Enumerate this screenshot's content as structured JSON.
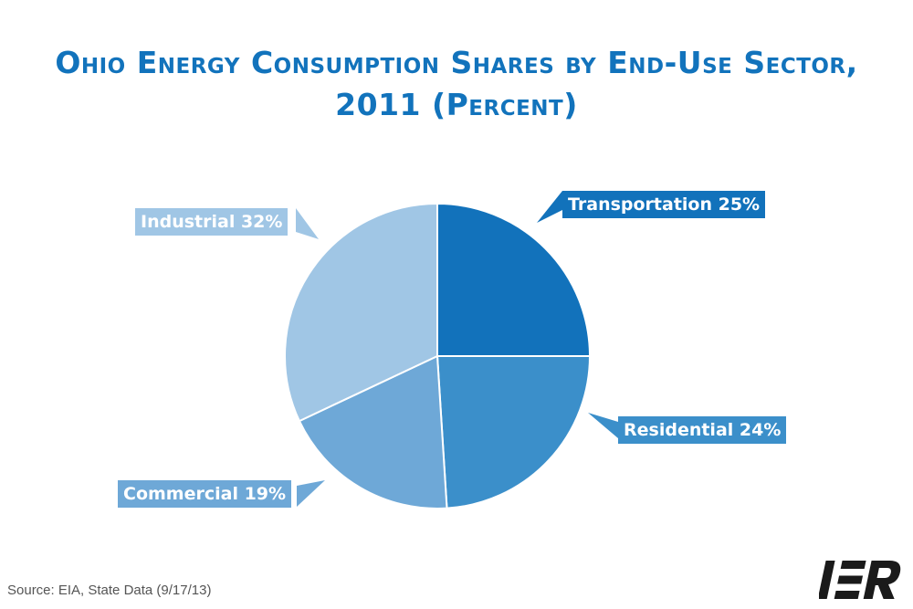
{
  "chart_data": {
    "type": "pie",
    "title": "Ohio Energy Consumption Shares by End-Use Sector, 2011 (Percent)",
    "slices": [
      {
        "label": "Transportation 25%",
        "name": "Transportation",
        "value": 25,
        "color": "#1272bb"
      },
      {
        "label": "Residential 24%",
        "name": "Residential",
        "value": 24,
        "color": "#3b8fca"
      },
      {
        "label": "Commercial 19%",
        "name": "Commercial",
        "value": 19,
        "color": "#6ea8d7"
      },
      {
        "label": "Industrial 32%",
        "name": "Industrial",
        "value": 32,
        "color": "#a0c6e5"
      }
    ],
    "start_angle": "12 o'clock",
    "direction": "clockwise",
    "legend": "none"
  },
  "footer": {
    "source": "Source: EIA, State Data (9/17/13)",
    "logo_text": "IER",
    "logo_color": "#1a1a1a"
  }
}
